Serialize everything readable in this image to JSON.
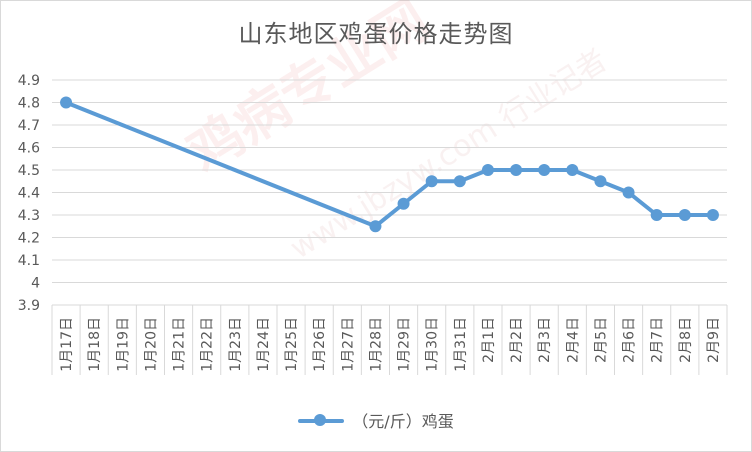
{
  "chart_data": {
    "type": "line",
    "title": "山东地区鸡蛋价格走势图",
    "categories": [
      "1月17日",
      "1月18日",
      "1月19日",
      "1月20日",
      "1月21日",
      "1月22日",
      "1月23日",
      "1月24日",
      "1月25日",
      "1月26日",
      "1月27日",
      "1月28日",
      "1月29日",
      "1月30日",
      "1月31日",
      "2月1日",
      "2月2日",
      "2月3日",
      "2月4日",
      "2月5日",
      "2月6日",
      "2月7日",
      "2月8日",
      "2月9日"
    ],
    "series": [
      {
        "name": "（元/斤）鸡蛋",
        "color": "#5b9bd5",
        "values": [
          4.8,
          null,
          null,
          null,
          null,
          null,
          null,
          null,
          null,
          null,
          null,
          4.25,
          4.35,
          4.45,
          4.45,
          4.5,
          4.5,
          4.5,
          4.5,
          4.45,
          4.4,
          4.3,
          4.3,
          4.3
        ]
      }
    ],
    "ylim": [
      3.9,
      4.9
    ],
    "yticks": [
      "3.9",
      "4",
      "4.1",
      "4.2",
      "4.3",
      "4.4",
      "4.5",
      "4.6",
      "4.7",
      "4.8",
      "4.9"
    ],
    "grid": true,
    "legend_position": "bottom"
  },
  "watermark": {
    "main": "鸡病专业网",
    "sub": "www.jbzyw.com 行业记者"
  }
}
